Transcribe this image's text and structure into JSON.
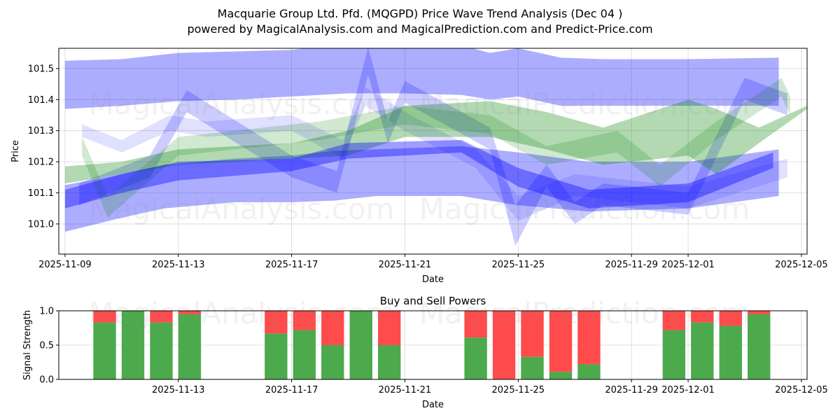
{
  "header": {
    "title": "Macquarie Group Ltd. Pfd. (MQGPD) Price Wave Trend Analysis (Dec 04 )",
    "subtitle": "powered by MagicalAnalysis.com and MagicalPrediction.com and Predict-Price.com"
  },
  "watermarks": [
    "MagicalAnalysis.com",
    "MagicalPrediction.com"
  ],
  "colors": {
    "blue": "#0000ff",
    "green": "#008000",
    "buy": "#4caa4c",
    "sell": "#ff4b4b"
  },
  "chart_data": [
    {
      "type": "area",
      "title": "",
      "xlabel": "Date",
      "ylabel": "Price",
      "x_unit": "days since 2025-11-09",
      "xlim": [
        -0.22,
        26.2
      ],
      "ylim": [
        100.903,
        101.565
      ],
      "xticks": [
        {
          "day": 0,
          "label": "2025-11-09"
        },
        {
          "day": 4,
          "label": "2025-11-13"
        },
        {
          "day": 8,
          "label": "2025-11-17"
        },
        {
          "day": 12,
          "label": "2025-11-21"
        },
        {
          "day": 16,
          "label": "2025-11-25"
        },
        {
          "day": 20,
          "label": "2025-11-29"
        },
        {
          "day": 22,
          "label": "2025-12-01"
        },
        {
          "day": 26,
          "label": "2025-12-05"
        }
      ],
      "yticks": [
        101.0,
        101.1,
        101.2,
        101.3,
        101.4,
        101.5
      ],
      "grid": true,
      "bands": [
        {
          "color": "blue",
          "opacity": 0.32,
          "x": [
            0,
            2,
            4,
            6,
            8,
            10,
            12,
            14,
            15,
            16,
            17.5,
            19,
            22,
            25.2
          ],
          "upper": [
            101.525,
            101.53,
            101.55,
            101.555,
            101.56,
            101.58,
            101.58,
            101.575,
            101.55,
            101.565,
            101.535,
            101.53,
            101.53,
            101.535
          ],
          "lower": [
            101.37,
            101.38,
            101.395,
            101.4,
            101.41,
            101.42,
            101.42,
            101.415,
            101.4,
            101.41,
            101.38,
            101.38,
            101.38,
            101.38
          ]
        },
        {
          "color": "blue",
          "opacity": 0.32,
          "x": [
            0,
            2,
            3.5,
            6,
            8,
            9.5,
            11,
            14,
            16,
            18.5,
            22,
            25.2
          ],
          "upper": [
            101.125,
            101.16,
            101.19,
            101.21,
            101.22,
            101.235,
            101.24,
            101.25,
            101.23,
            101.2,
            101.2,
            101.24
          ],
          "lower": [
            100.975,
            101.02,
            101.05,
            101.07,
            101.07,
            101.075,
            101.09,
            101.09,
            101.06,
            101.04,
            101.05,
            101.09
          ]
        },
        {
          "color": "blue",
          "opacity": 0.12,
          "x": [
            0.6,
            2,
            3.7,
            5,
            8,
            9.8,
            10.6,
            12,
            14.5,
            16,
            18,
            22,
            25.5
          ],
          "upper": [
            101.32,
            101.27,
            101.35,
            101.33,
            101.35,
            101.27,
            101.44,
            101.36,
            101.24,
            101.09,
            101.16,
            101.12,
            101.21
          ],
          "lower": [
            101.28,
            101.23,
            101.3,
            101.28,
            101.3,
            101.21,
            101.38,
            101.3,
            101.18,
            101.01,
            101.09,
            101.05,
            101.15
          ]
        },
        {
          "color": "blue",
          "opacity": 0.2,
          "x": [
            0.5,
            3,
            4.3,
            8,
            9.6,
            10.7,
            11.4,
            12,
            15,
            15.9,
            17,
            18,
            19,
            22,
            24,
            25.5
          ],
          "upper": [
            101.13,
            101.22,
            101.43,
            101.22,
            101.17,
            101.57,
            101.33,
            101.46,
            101.31,
            101.06,
            101.19,
            101.07,
            101.13,
            101.1,
            101.47,
            101.42
          ],
          "lower": [
            101.06,
            101.15,
            101.36,
            101.15,
            101.1,
            101.48,
            101.26,
            101.39,
            101.24,
            100.93,
            101.12,
            101.0,
            101.06,
            101.03,
            101.4,
            101.35
          ]
        },
        {
          "color": "green",
          "opacity": 0.3,
          "x": [
            0,
            2,
            4,
            8,
            10,
            12,
            15,
            17,
            19,
            22,
            23,
            24.5,
            26.2
          ],
          "upper": [
            101.185,
            101.2,
            101.24,
            101.26,
            101.3,
            101.38,
            101.395,
            101.36,
            101.31,
            101.4,
            101.37,
            101.31,
            101.38
          ],
          "lower": [
            101.13,
            101.16,
            101.19,
            101.21,
            101.22,
            101.28,
            101.28,
            101.24,
            101.19,
            101.22,
            101.16,
            101.26,
            101.37
          ]
        },
        {
          "color": "green",
          "opacity": 0.18,
          "x": [
            0.6,
            1.5,
            4,
            9,
            12,
            15,
            17,
            19.5,
            21,
            23,
            25.3,
            25.6
          ],
          "upper": [
            101.28,
            101.09,
            101.28,
            101.33,
            101.38,
            101.35,
            101.25,
            101.3,
            101.19,
            101.33,
            101.47,
            101.41
          ],
          "lower": [
            101.22,
            101.02,
            101.22,
            101.27,
            101.32,
            101.29,
            101.19,
            101.23,
            101.12,
            101.27,
            101.41,
            101.35
          ]
        },
        {
          "color": "blue",
          "opacity": 0.38,
          "x": [
            0,
            2,
            4,
            8,
            10,
            14,
            16,
            18.5,
            22,
            25
          ],
          "upper": [
            101.11,
            101.16,
            101.2,
            101.21,
            101.26,
            101.27,
            101.18,
            101.11,
            101.13,
            101.23
          ],
          "lower": [
            101.05,
            101.1,
            101.14,
            101.17,
            101.21,
            101.23,
            101.12,
            101.05,
            101.07,
            101.18
          ]
        }
      ]
    },
    {
      "type": "bar",
      "title": "Buy and Sell Powers",
      "xlabel": "Date",
      "ylabel": "Signal Strength",
      "x_unit": "days since 2025-11-09",
      "xlim": [
        -0.22,
        26.2
      ],
      "ylim": [
        0,
        1
      ],
      "yticks": [
        {
          "v": 0,
          "label": "0.0"
        },
        {
          "v": 0.5,
          "label": "0.5"
        },
        {
          "v": 1,
          "label": "1.0"
        }
      ],
      "xticks": [
        {
          "day": 4,
          "label": "2025-11-13"
        },
        {
          "day": 8,
          "label": "2025-11-17"
        },
        {
          "day": 12,
          "label": "2025-11-21"
        },
        {
          "day": 16,
          "label": "2025-11-25"
        },
        {
          "day": 20,
          "label": "2025-11-29"
        },
        {
          "day": 22,
          "label": "2025-12-01"
        },
        {
          "day": 26,
          "label": "2025-12-05"
        }
      ],
      "series": [
        {
          "name": "Buy",
          "color": "buy"
        },
        {
          "name": "Sell",
          "color": "sell"
        }
      ],
      "x": [
        1.4,
        2.4,
        3.4,
        4.4,
        7.45,
        8.45,
        9.45,
        10.45,
        11.45,
        14.5,
        15.5,
        16.5,
        17.5,
        18.5,
        21.5,
        22.5,
        23.5,
        24.5
      ],
      "buy": [
        0.83,
        1.0,
        0.83,
        0.95,
        0.67,
        0.72,
        0.5,
        1.0,
        0.5,
        0.61,
        0.0,
        0.33,
        0.11,
        0.22,
        0.72,
        0.83,
        0.78,
        0.95
      ]
    }
  ]
}
